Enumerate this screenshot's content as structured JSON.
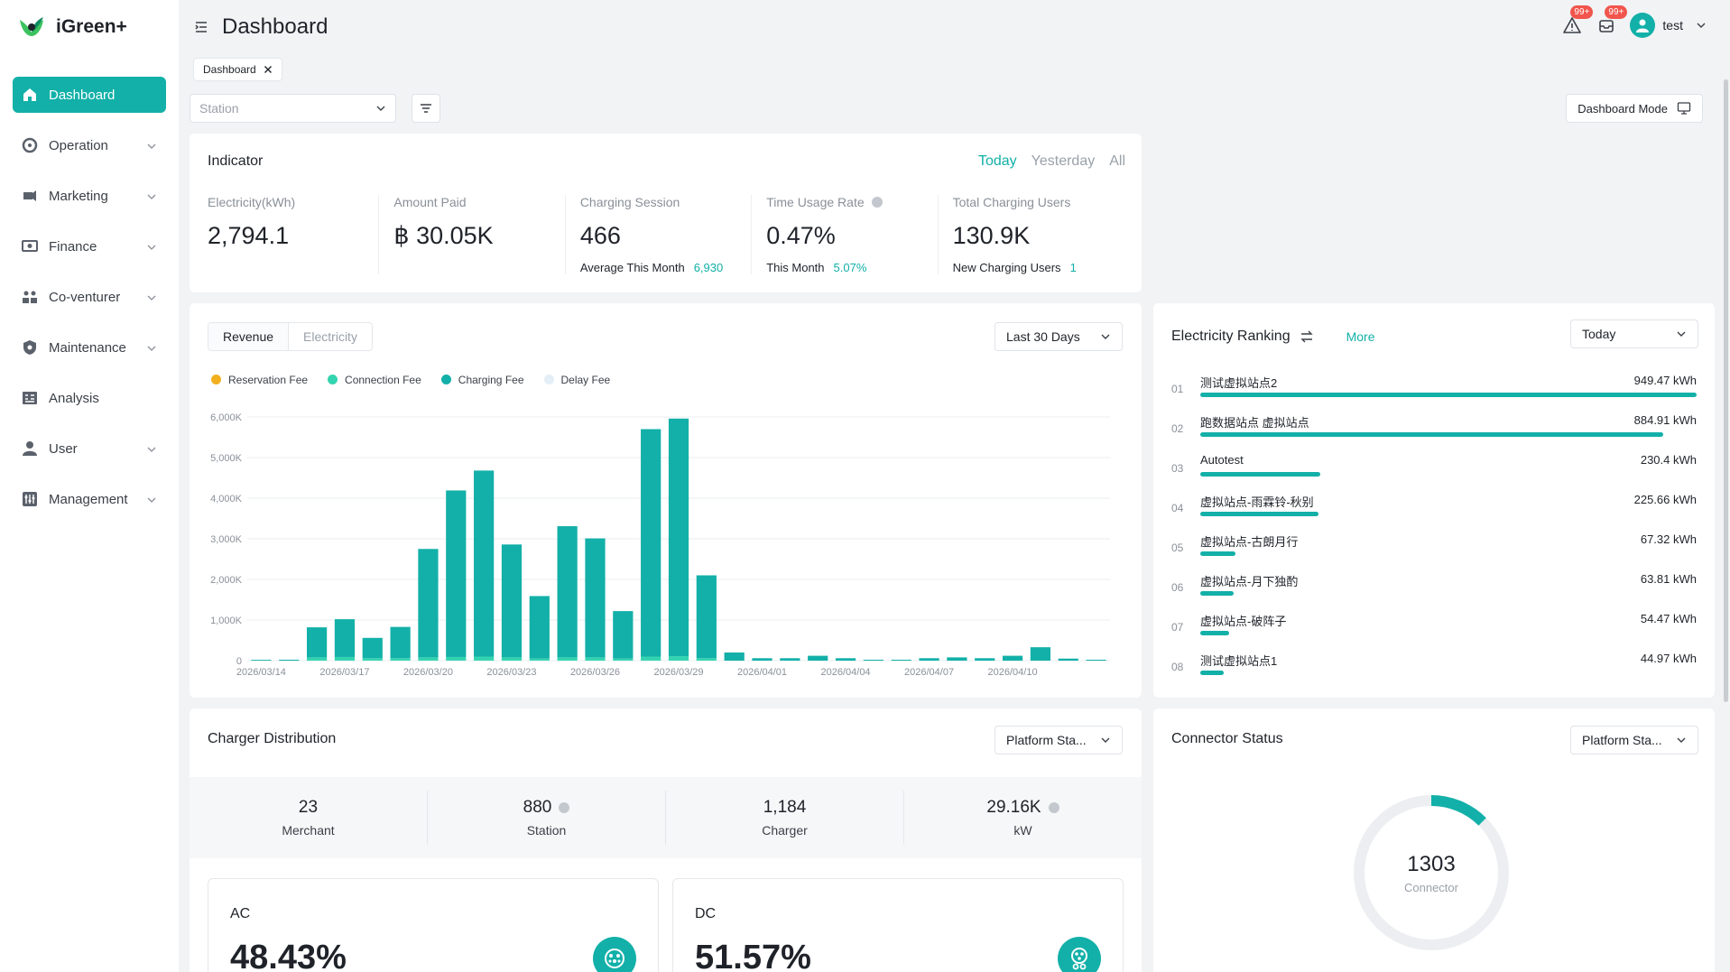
{
  "app": {
    "name": "iGreen+",
    "accent": "#12b0a8"
  },
  "sidebar": {
    "items": [
      {
        "label": "Dashboard",
        "icon": "home-icon",
        "active": true,
        "expandable": false
      },
      {
        "label": "Operation",
        "icon": "operation-icon",
        "active": false,
        "expandable": true
      },
      {
        "label": "Marketing",
        "icon": "marketing-icon",
        "active": false,
        "expandable": true
      },
      {
        "label": "Finance",
        "icon": "finance-icon",
        "active": false,
        "expandable": true
      },
      {
        "label": "Co-venturer",
        "icon": "co-venturer-icon",
        "active": false,
        "expandable": true
      },
      {
        "label": "Maintenance",
        "icon": "maintenance-icon",
        "active": false,
        "expandable": true
      },
      {
        "label": "Analysis",
        "icon": "analysis-icon",
        "active": false,
        "expandable": false
      },
      {
        "label": "User",
        "icon": "user-icon",
        "active": false,
        "expandable": true
      },
      {
        "label": "Management",
        "icon": "management-icon",
        "active": false,
        "expandable": true
      }
    ]
  },
  "header": {
    "title": "Dashboard",
    "alert_badge": "99+",
    "message_badge": "99+",
    "user": "test"
  },
  "tabs": [
    {
      "label": "Dashboard"
    }
  ],
  "filters": {
    "station_placeholder": "Station",
    "mode_button": "Dashboard Mode"
  },
  "indicator": {
    "title": "Indicator",
    "ranges": [
      "Today",
      "Yesterday",
      "All"
    ],
    "active_range": "Today",
    "metrics": [
      {
        "label": "Electricity(kWh)",
        "value": "2,794.1",
        "sub_label": "",
        "sub_value": ""
      },
      {
        "label": "Amount Paid",
        "value": "฿ 30.05K",
        "sub_label": "",
        "sub_value": ""
      },
      {
        "label": "Charging Session",
        "value": "466",
        "sub_label": "Average This Month",
        "sub_value": "6,930"
      },
      {
        "label": "Time Usage Rate",
        "value": "0.47%",
        "sub_label": "This Month",
        "sub_value": "5.07%"
      },
      {
        "label": "Total Charging Users",
        "value": "130.9K",
        "sub_label": "New Charging Users",
        "sub_value": "1"
      }
    ]
  },
  "revenue": {
    "tabs": [
      "Revenue",
      "Electricity"
    ],
    "active_tab": "Revenue",
    "range": "Last 30 Days"
  },
  "chart_data": {
    "type": "bar",
    "stacked": true,
    "title": "",
    "xlabel": "",
    "ylabel": "",
    "ylim": [
      0,
      6000
    ],
    "yticks": [
      "0",
      "1,000K",
      "2,000K",
      "3,000K",
      "4,000K",
      "5,000K",
      "6,000K"
    ],
    "grid": true,
    "legend_position": "top-left",
    "categories": [
      "2026/03/14",
      "2026/03/15",
      "2026/03/16",
      "2026/03/17",
      "2026/03/18",
      "2026/03/19",
      "2026/03/20",
      "2026/03/21",
      "2026/03/22",
      "2026/03/23",
      "2026/03/24",
      "2026/03/25",
      "2026/03/26",
      "2026/03/27",
      "2026/03/28",
      "2026/03/29",
      "2026/03/30",
      "2026/03/31",
      "2026/04/01",
      "2026/04/02",
      "2026/04/03",
      "2026/04/04",
      "2026/04/05",
      "2026/04/06",
      "2026/04/07",
      "2026/04/08",
      "2026/04/09",
      "2026/04/10",
      "2026/04/11",
      "2026/04/12",
      "2026/04/13"
    ],
    "xtick_labels": [
      "2026/03/14",
      "2026/03/17",
      "2026/03/20",
      "2026/03/23",
      "2026/03/26",
      "2026/03/29",
      "2026/04/01",
      "2026/04/04",
      "2026/04/07",
      "2026/04/10"
    ],
    "series": [
      {
        "name": "Reservation Fee",
        "color": "#f2b01e",
        "values": [
          0,
          0,
          0,
          0,
          0,
          0,
          0,
          0,
          0,
          0,
          0,
          0,
          0,
          0,
          0,
          0,
          0,
          0,
          0,
          0,
          0,
          0,
          0,
          0,
          0,
          0,
          0,
          0,
          0,
          0,
          0
        ]
      },
      {
        "name": "Connection Fee",
        "color": "#35d4b0",
        "values": [
          0,
          0,
          80,
          90,
          60,
          60,
          80,
          90,
          100,
          80,
          50,
          80,
          80,
          50,
          100,
          110,
          60,
          0,
          0,
          0,
          0,
          0,
          0,
          0,
          0,
          0,
          0,
          0,
          0,
          0,
          0
        ]
      },
      {
        "name": "Charging Fee",
        "color": "#12b0a8",
        "values": [
          20,
          0,
          740,
          930,
          500,
          770,
          2670,
          4100,
          4580,
          2780,
          1540,
          3230,
          2930,
          1170,
          5600,
          5850,
          2040,
          200,
          60,
          60,
          120,
          60,
          0,
          0,
          60,
          80,
          60,
          120,
          330,
          50,
          0
        ]
      },
      {
        "name": "Delay Fee",
        "color": "#e3eef7",
        "values": [
          0,
          0,
          0,
          0,
          0,
          0,
          0,
          0,
          0,
          0,
          0,
          0,
          0,
          0,
          0,
          0,
          0,
          0,
          0,
          0,
          0,
          0,
          0,
          0,
          0,
          0,
          0,
          0,
          0,
          0,
          0
        ]
      }
    ]
  },
  "ranking": {
    "title": "Electricity Ranking",
    "more": "More",
    "range": "Today",
    "unit": "kWh",
    "items": [
      {
        "no": "01",
        "name": "测试虚拟站点2",
        "value": "949.47 kWh",
        "amount": 949.47
      },
      {
        "no": "02",
        "name": "跑数据站点 虚拟站点",
        "value": "884.91 kWh",
        "amount": 884.91
      },
      {
        "no": "03",
        "name": "Autotest",
        "value": "230.4 kWh",
        "amount": 230.4
      },
      {
        "no": "04",
        "name": "虚拟站点-雨霖铃-秋别",
        "value": "225.66 kWh",
        "amount": 225.66
      },
      {
        "no": "05",
        "name": "虚拟站点-古朗月行",
        "value": "67.32 kWh",
        "amount": 67.32
      },
      {
        "no": "06",
        "name": "虚拟站点-月下独酌",
        "value": "63.81 kWh",
        "amount": 63.81
      },
      {
        "no": "07",
        "name": "虚拟站点-破阵子",
        "value": "54.47 kWh",
        "amount": 54.47
      },
      {
        "no": "08",
        "name": "测试虚拟站点1",
        "value": "44.97 kWh",
        "amount": 44.97
      }
    ]
  },
  "distribution": {
    "title": "Charger Distribution",
    "scope": "Platform Sta...",
    "stats": [
      {
        "value": "23",
        "label": "Merchant",
        "info": false
      },
      {
        "value": "880",
        "label": "Station",
        "info": true
      },
      {
        "value": "1,184",
        "label": "Charger",
        "info": false
      },
      {
        "value": "29.16K",
        "label": "kW",
        "info": true
      }
    ],
    "ac": {
      "title": "AC",
      "value": "48.43%"
    },
    "dc": {
      "title": "DC",
      "value": "51.57%"
    }
  },
  "connector": {
    "title": "Connector Status",
    "scope": "Platform Sta...",
    "total": "1303",
    "label": "Connector",
    "highlight_fraction": 0.125
  }
}
